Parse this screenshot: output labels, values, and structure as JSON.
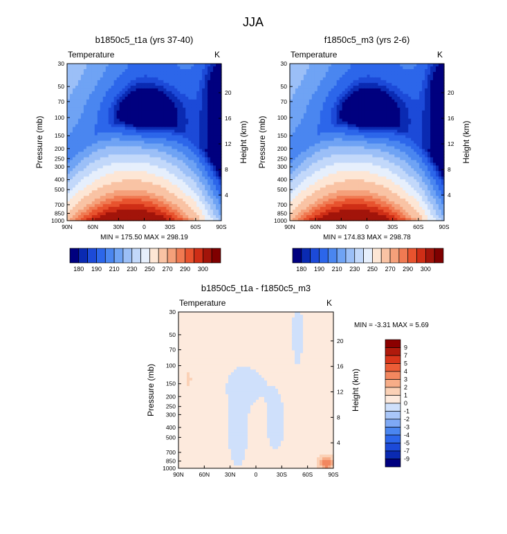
{
  "figure": {
    "title": "JJA"
  },
  "palettes": {
    "abs": [
      "#00007f",
      "#0a2ab2",
      "#1c4ad8",
      "#2c66ea",
      "#4a86f0",
      "#6fa3f4",
      "#9bbff7",
      "#c2d8fa",
      "#e6effc",
      "#fde6d5",
      "#f9c3a4",
      "#f5a07a",
      "#f07a52",
      "#e8532e",
      "#cf2e16",
      "#a2140a",
      "#7f0000"
    ],
    "diff": [
      "#00007f",
      "#0a2ab2",
      "#1c4ad8",
      "#2c66ea",
      "#4a86f0",
      "#7ea9f5",
      "#a9c6f8",
      "#cfe0fb",
      "#fdeadd",
      "#fbd1b6",
      "#f7ad88",
      "#f2875f",
      "#ec5d37",
      "#d9361b",
      "#b01a0c",
      "#8b0000"
    ]
  },
  "chart_data": [
    {
      "type": "heatmap",
      "title": "b1850c5_t1a (yrs 37-40)",
      "left_string": "Temperature",
      "right_string": "K",
      "xlabel": "",
      "ylabel": "Pressure (mb)",
      "ylabel_right": "Height (km)",
      "x_ticks": [
        "90N",
        "60N",
        "30N",
        "0",
        "30S",
        "60S",
        "90S"
      ],
      "y_ticks": [
        30,
        50,
        70,
        100,
        150,
        200,
        250,
        300,
        400,
        500,
        700,
        850,
        1000
      ],
      "y_right_ticks": [
        4,
        8,
        12,
        16,
        20
      ],
      "min_max_text": "MIN = 175.50   MAX = 298.19",
      "stats": {
        "min": 175.5,
        "max": 298.19
      },
      "colorbar": {
        "orientation": "horizontal",
        "labels": [
          "180",
          "190",
          "210",
          "230",
          "250",
          "270",
          "290",
          "300"
        ]
      },
      "field": "abs"
    },
    {
      "type": "heatmap",
      "title": "f1850c5_m3 (yrs 2-6)",
      "left_string": "Temperature",
      "right_string": "K",
      "xlabel": "",
      "ylabel": "Pressure (mb)",
      "ylabel_right": "Height (km)",
      "x_ticks": [
        "90N",
        "60N",
        "30N",
        "0",
        "30S",
        "60S",
        "90S"
      ],
      "y_ticks": [
        30,
        50,
        70,
        100,
        150,
        200,
        250,
        300,
        400,
        500,
        700,
        850,
        1000
      ],
      "y_right_ticks": [
        4,
        8,
        12,
        16,
        20
      ],
      "min_max_text": "MIN = 174.83   MAX = 298.78",
      "stats": {
        "min": 174.83,
        "max": 298.78
      },
      "colorbar": {
        "orientation": "horizontal",
        "labels": [
          "180",
          "190",
          "210",
          "230",
          "250",
          "270",
          "290",
          "300"
        ]
      },
      "field": "abs"
    },
    {
      "type": "heatmap",
      "title": "b1850c5_t1a - f1850c5_m3",
      "left_string": "Temperature",
      "right_string": "K",
      "xlabel": "",
      "ylabel": "Pressure (mb)",
      "ylabel_right": "Height (km)",
      "x_ticks": [
        "90N",
        "60N",
        "30N",
        "0",
        "30S",
        "60S",
        "90S"
      ],
      "y_ticks": [
        30,
        50,
        70,
        100,
        150,
        200,
        250,
        300,
        400,
        500,
        700,
        850,
        1000
      ],
      "y_right_ticks": [
        4,
        8,
        12,
        16,
        20
      ],
      "min_max_text": "MIN =  -3.31   MAX =   5.69",
      "stats": {
        "min": -3.31,
        "max": 5.69
      },
      "colorbar": {
        "orientation": "vertical",
        "labels": [
          "9",
          "7",
          "5",
          "4",
          "3",
          "2",
          "1",
          "0",
          "-1",
          "-2",
          "-3",
          "-4",
          "-5",
          "-7",
          "-9"
        ]
      },
      "field": "diff"
    }
  ]
}
